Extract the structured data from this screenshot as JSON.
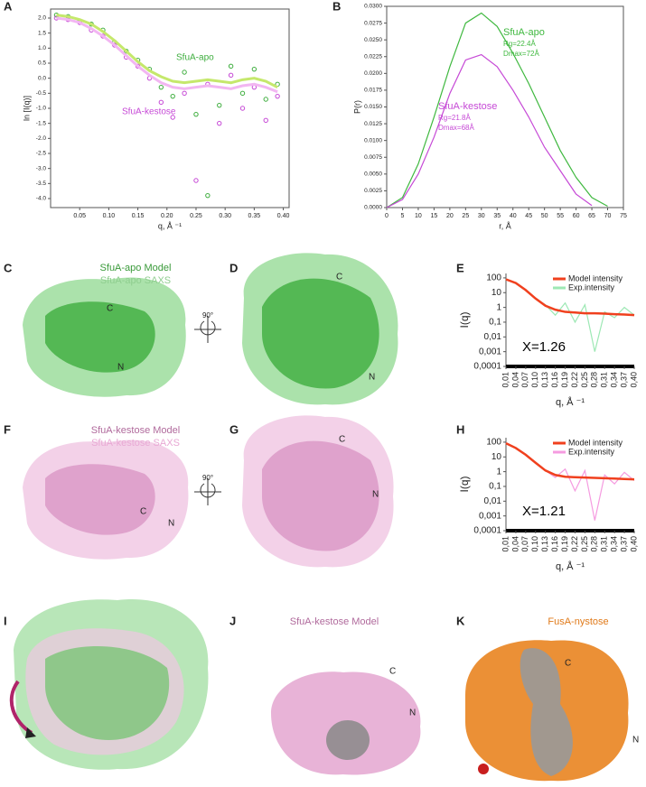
{
  "chart_data": [
    {
      "type": "scatter",
      "xlabel": "q, Å ⁻¹",
      "ylabel": "ln [I(q)]",
      "xlim": [
        0,
        0.41
      ],
      "ylim": [
        -4.3,
        2.3
      ],
      "xticks": [
        0.05,
        {
          "value": 0.1,
          "label": "0.10"
        },
        0.15,
        {
          "value": 0.2,
          "label": "0.20"
        },
        0.25,
        {
          "value": 0.3,
          "label": "0.30"
        },
        0.35,
        {
          "value": 0.4,
          "label": "0.40"
        }
      ],
      "yticks": [
        {
          "value": -4,
          "label": "-4.0"
        },
        -3.5,
        {
          "value": -3,
          "label": "-3.0"
        },
        -2.5,
        {
          "value": -2,
          "label": "-2.0"
        },
        -1.5,
        {
          "value": -1,
          "label": "-1.0"
        },
        -0.5,
        {
          "value": 0,
          "label": "0.0"
        },
        0.5,
        {
          "value": 1,
          "label": "1.0"
        },
        1.5,
        {
          "value": 2,
          "label": "2.0"
        }
      ],
      "x": [
        0.01,
        0.03,
        0.05,
        0.07,
        0.09,
        0.11,
        0.13,
        0.15,
        0.17,
        0.19,
        0.21,
        0.23,
        0.25,
        0.27,
        0.29,
        0.31,
        0.33,
        0.35,
        0.37,
        0.39
      ],
      "annotations": [
        "SfuA-apo",
        "SfuA-kestose"
      ],
      "series": [
        {
          "name": "SfuA-apo",
          "color": "#3fae3f",
          "fit_color": "#c5e86c",
          "values": [
            2.1,
            2.05,
            1.9,
            1.8,
            1.6,
            1.2,
            0.9,
            0.6,
            0.3,
            -0.3,
            -0.6,
            0.2,
            -1.2,
            -3.9,
            -0.9,
            0.4,
            -0.5,
            0.3,
            -0.7,
            -0.2
          ],
          "fit": [
            2.1,
            2.05,
            1.95,
            1.8,
            1.55,
            1.25,
            0.9,
            0.55,
            0.25,
            0.05,
            -0.1,
            -0.15,
            -0.1,
            -0.05,
            -0.1,
            -0.15,
            -0.05,
            0.0,
            -0.1,
            -0.3
          ]
        },
        {
          "name": "SfuA-kestose",
          "color": "#c649d6",
          "fit_color": "#f2b6f2",
          "values": [
            2.0,
            1.95,
            1.85,
            1.6,
            1.4,
            1.1,
            0.7,
            0.4,
            0.0,
            -0.8,
            -1.3,
            -0.5,
            -3.4,
            -0.2,
            -1.5,
            0.1,
            -1.0,
            -0.3,
            -1.4,
            -0.6
          ],
          "fit": [
            2.0,
            1.95,
            1.85,
            1.65,
            1.4,
            1.1,
            0.75,
            0.4,
            0.1,
            -0.15,
            -0.3,
            -0.35,
            -0.3,
            -0.25,
            -0.3,
            -0.35,
            -0.25,
            -0.2,
            -0.3,
            -0.45
          ]
        }
      ]
    },
    {
      "type": "line",
      "xlabel": "r, Å",
      "ylabel": "P(r)",
      "xlim": [
        0,
        75
      ],
      "ylim": [
        0,
        0.03
      ],
      "xticks": [
        0,
        5,
        10,
        15,
        20,
        25,
        30,
        35,
        40,
        45,
        50,
        55,
        60,
        65,
        70,
        75
      ],
      "yticks": [
        {
          "value": 0,
          "label": "0.0000"
        },
        {
          "value": 0.0025,
          "label": "0.0025"
        },
        {
          "value": 0.005,
          "label": "0.0050"
        },
        {
          "value": 0.0075,
          "label": "0.0075"
        },
        {
          "value": 0.01,
          "label": "0.0100"
        },
        {
          "value": 0.0125,
          "label": "0.0125"
        },
        {
          "value": 0.015,
          "label": "0.0150"
        },
        {
          "value": 0.0175,
          "label": "0.0175"
        },
        {
          "value": 0.02,
          "label": "0.0200"
        },
        {
          "value": 0.0225,
          "label": "0.0225"
        },
        {
          "value": 0.025,
          "label": "0.0250"
        },
        {
          "value": 0.0275,
          "label": "0.0275"
        },
        {
          "value": 0.03,
          "label": "0.0300"
        }
      ],
      "x": [
        0,
        5,
        10,
        15,
        20,
        25,
        30,
        35,
        40,
        45,
        50,
        55,
        60,
        65,
        70,
        75
      ],
      "annotations": [
        "SfuA-apo",
        "Rg=22.4Å",
        "Dmax=72Å",
        "SfuA-kestose",
        "Rg=21.8Å",
        "Dmax=68Å"
      ],
      "series": [
        {
          "name": "SfuA-apo",
          "color": "#3fb83f",
          "values": [
            0,
            0.0015,
            0.0065,
            0.0135,
            0.021,
            0.0275,
            0.029,
            0.027,
            0.023,
            0.0185,
            0.0135,
            0.0085,
            0.0045,
            0.0015,
            0.0002,
            null
          ]
        },
        {
          "name": "SfuA-kestose",
          "color": "#c649d6",
          "values": [
            0,
            0.0012,
            0.005,
            0.0105,
            0.017,
            0.022,
            0.0228,
            0.021,
            0.0175,
            0.0135,
            0.009,
            0.0055,
            0.002,
            0.0003,
            null,
            null
          ]
        }
      ]
    },
    {
      "type": "line",
      "log_y": true,
      "legend": true,
      "xlabel": "q, Å ⁻¹",
      "ylabel": "I(q)",
      "xlim": [
        0.01,
        0.4
      ],
      "ylim": [
        0.0001,
        200
      ],
      "xticks": [
        {
          "value": 0.01,
          "label": "0,01"
        },
        {
          "value": 0.04,
          "label": "0,04"
        },
        {
          "value": 0.07,
          "label": "0,07"
        },
        {
          "value": 0.1,
          "label": "0,10"
        },
        {
          "value": 0.13,
          "label": "0,13"
        },
        {
          "value": 0.16,
          "label": "0,16"
        },
        {
          "value": 0.19,
          "label": "0,19"
        },
        {
          "value": 0.22,
          "label": "0,22"
        },
        {
          "value": 0.25,
          "label": "0,25"
        },
        {
          "value": 0.28,
          "label": "0,28"
        },
        {
          "value": 0.31,
          "label": "0,31"
        },
        {
          "value": 0.34,
          "label": "0,34"
        },
        {
          "value": 0.37,
          "label": "0,37"
        },
        {
          "value": 0.4,
          "label": "0,40"
        }
      ],
      "yticks": [
        100,
        10,
        1,
        {
          "value": 0.1,
          "label": "0,1"
        },
        {
          "value": 0.01,
          "label": "0,01"
        },
        {
          "value": 0.001,
          "label": "0,001"
        },
        {
          "value": 0.0001,
          "label": "0,0001"
        }
      ],
      "x": [
        0.01,
        0.04,
        0.07,
        0.1,
        0.13,
        0.16,
        0.19,
        0.22,
        0.25,
        0.28,
        0.31,
        0.34,
        0.37,
        0.4
      ],
      "annotations": [
        "X=1.26"
      ],
      "series": [
        {
          "name": "Exp.intensity",
          "color": "#9de8b4",
          "values": [
            85,
            45,
            14,
            4,
            1.5,
            0.3,
            2,
            0.1,
            1.5,
            0.001,
            0.5,
            0.2,
            1,
            0.3
          ]
        },
        {
          "name": "Model intensity",
          "color": "#f0401e",
          "values": [
            80,
            45,
            15,
            4,
            1.3,
            0.7,
            0.5,
            0.45,
            0.4,
            0.4,
            0.38,
            0.35,
            0.33,
            0.3
          ]
        }
      ]
    },
    {
      "type": "line",
      "log_y": true,
      "legend": true,
      "xlabel": "q, Å ⁻¹",
      "ylabel": "I(q)",
      "xlim": [
        0.01,
        0.4
      ],
      "ylim": [
        0.0001,
        200
      ],
      "xticks": [
        {
          "value": 0.01,
          "label": "0,01"
        },
        {
          "value": 0.04,
          "label": "0,04"
        },
        {
          "value": 0.07,
          "label": "0,07"
        },
        {
          "value": 0.1,
          "label": "0,10"
        },
        {
          "value": 0.13,
          "label": "0,13"
        },
        {
          "value": 0.16,
          "label": "0,16"
        },
        {
          "value": 0.19,
          "label": "0,19"
        },
        {
          "value": 0.22,
          "label": "0,22"
        },
        {
          "value": 0.25,
          "label": "0,25"
        },
        {
          "value": 0.28,
          "label": "0,28"
        },
        {
          "value": 0.31,
          "label": "0,31"
        },
        {
          "value": 0.34,
          "label": "0,34"
        },
        {
          "value": 0.37,
          "label": "0,37"
        },
        {
          "value": 0.4,
          "label": "0,40"
        }
      ],
      "yticks": [
        100,
        10,
        1,
        {
          "value": 0.1,
          "label": "0,1"
        },
        {
          "value": 0.01,
          "label": "0,01"
        },
        {
          "value": 0.001,
          "label": "0,001"
        },
        {
          "value": 0.0001,
          "label": "0,0001"
        }
      ],
      "x": [
        0.01,
        0.04,
        0.07,
        0.1,
        0.13,
        0.16,
        0.19,
        0.22,
        0.25,
        0.28,
        0.31,
        0.34,
        0.37,
        0.4
      ],
      "annotations": [
        "X=1.21"
      ],
      "series": [
        {
          "name": "Exp.intensity",
          "color": "#f59be0",
          "values": [
            90,
            40,
            13,
            4,
            1.2,
            0.4,
            1.5,
            0.05,
            1.2,
            0.0005,
            0.6,
            0.15,
            0.9,
            0.25
          ]
        },
        {
          "name": "Model intensity",
          "color": "#f0401e",
          "values": [
            85,
            40,
            14,
            4,
            1.2,
            0.6,
            0.45,
            0.42,
            0.4,
            0.38,
            0.36,
            0.34,
            0.32,
            0.3
          ]
        }
      ]
    }
  ],
  "figure": {
    "panels": [
      "A",
      "B",
      "C",
      "D",
      "E",
      "F",
      "G",
      "H",
      "I",
      "J",
      "K"
    ],
    "apo_model": "SfuA-apo Model",
    "apo_saxs": "SfuA-apo SAXS",
    "kestose_model": "SfuA-kestose Model",
    "kestose_saxs": "SfuA-kestose SAXS",
    "rotation_c": "90°",
    "rotation_f": "90°",
    "j_title": "SfuA-kestose Model",
    "k_title": "FusA-nystose",
    "termini": [
      "C",
      "N"
    ]
  }
}
